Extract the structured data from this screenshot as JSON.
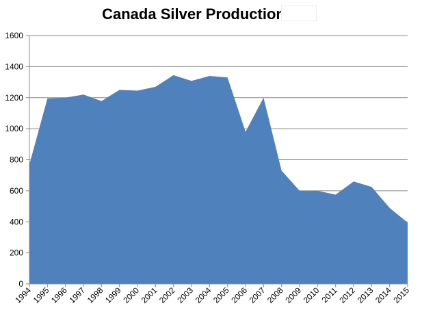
{
  "chart_data": {
    "type": "area",
    "title": "Canada Silver Production",
    "xlabel": "",
    "ylabel": "",
    "x": [
      "1994",
      "1995",
      "1996",
      "1997",
      "1998",
      "1999",
      "2000",
      "2001",
      "2002",
      "2003",
      "2004",
      "2005",
      "2006",
      "2007",
      "2008",
      "2009",
      "2010",
      "2011",
      "2012",
      "2013",
      "2014",
      "2015"
    ],
    "values": [
      770,
      1195,
      1200,
      1220,
      1178,
      1250,
      1245,
      1270,
      1345,
      1308,
      1340,
      1330,
      980,
      1200,
      730,
      600,
      600,
      575,
      660,
      625,
      490,
      395
    ],
    "ylim": [
      0,
      1600
    ],
    "yticks": [
      "0",
      "200",
      "400",
      "600",
      "800",
      "1000",
      "1200",
      "1400",
      "1600"
    ],
    "grid": true,
    "legend": "none",
    "colors": {
      "fill": "#4f81bd",
      "grid": "#888888",
      "axis": "#888888"
    }
  }
}
